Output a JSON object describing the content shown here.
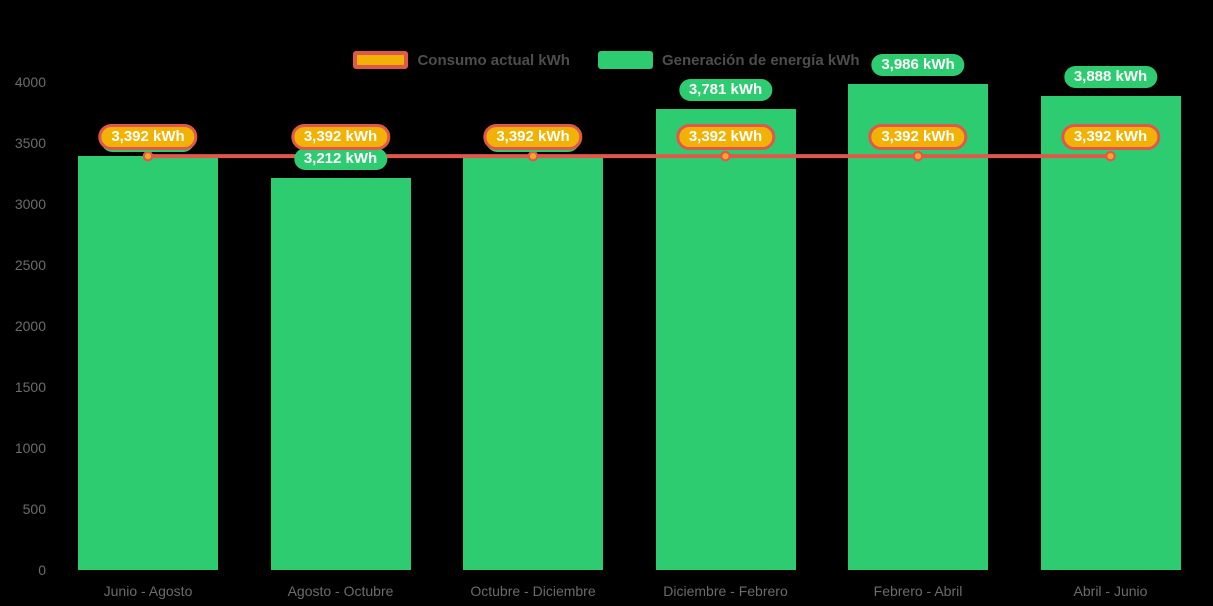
{
  "background_color": "#000000",
  "colors": {
    "generation_green": "#2ecc71",
    "consumption_line_red": "#e2574c",
    "consumption_pill_fill": "#f1b205",
    "marker_orange_fill": "#f7a823",
    "axis_label_gray": "#6b6b6b",
    "legend_text_gray": "#4d4d4d",
    "pill_text_white": "#ffffff"
  },
  "legend": {
    "items": [
      {
        "id": "consumption",
        "label": "Consumo actual kWh"
      },
      {
        "id": "generation",
        "label": "Generación de energía kWh"
      }
    ]
  },
  "chart_data": {
    "type": "bar",
    "subtype": "bars-with-line-overlay",
    "categories": [
      "Junio - Agosto",
      "Agosto - Octubre",
      "Octubre - Diciembre",
      "Diciembre - Febrero",
      "Febrero - Abril",
      "Abril - Junio"
    ],
    "series": [
      {
        "name": "Generación de energía kWh",
        "type": "bar",
        "color": "#2ecc71",
        "values": [
          3392,
          3212,
          3392,
          3781,
          3986,
          3888
        ],
        "labels": [
          "3,392 kWh",
          "3,212 kWh",
          "3,392 kWh",
          "3,781 kWh",
          "3,986 kWh",
          "3,888 kWh"
        ]
      },
      {
        "name": "Consumo actual kWh",
        "type": "line",
        "color": "#e2574c",
        "marker_fill": "#f7a823",
        "values": [
          3392,
          3392,
          3392,
          3392,
          3392,
          3392
        ],
        "labels": [
          "3,392 kWh",
          "3,392 kWh",
          "3,392 kWh",
          "3,392 kWh",
          "3,392 kWh",
          "3,392 kWh"
        ]
      }
    ],
    "ylim": [
      0,
      4000
    ],
    "yticks": [
      0,
      500,
      1000,
      1500,
      2000,
      2500,
      3000,
      3500,
      4000
    ],
    "ytick_labels": [
      "0",
      "500",
      "1000",
      "1500",
      "2000",
      "2500",
      "3000",
      "3500",
      "4000"
    ],
    "grid": false,
    "legend_position": "top-center"
  }
}
